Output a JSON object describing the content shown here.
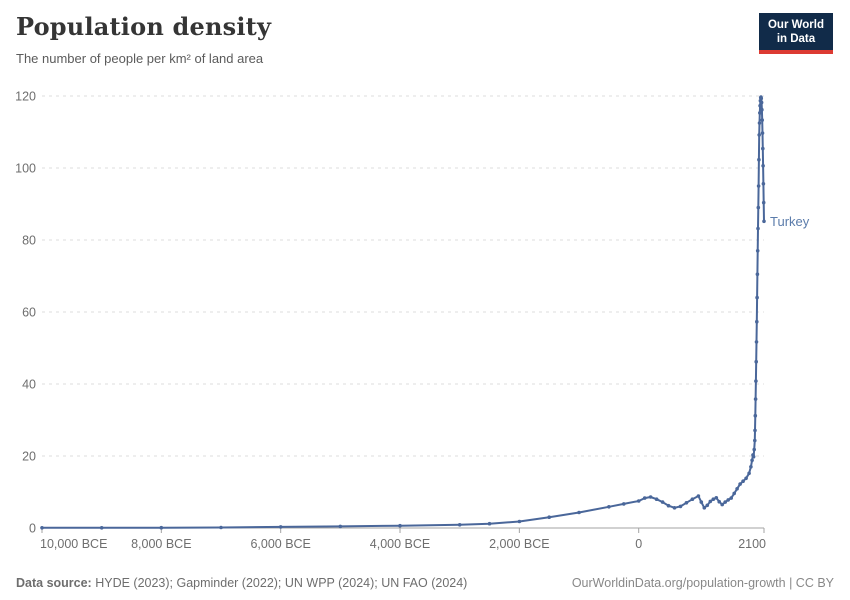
{
  "header": {
    "title": "Population density",
    "subtitle": "The number of people per km² of land area",
    "logo": {
      "line1": "Our World",
      "line2": "in Data"
    }
  },
  "footer": {
    "source_label": "Data source:",
    "source_text": " HYDE (2023); Gapminder (2022); UN WPP (2024); UN FAO (2024)",
    "credit": "OurWorldinData.org/population-growth | CC BY"
  },
  "colors": {
    "logo_background": "#112B49",
    "logo_stripe": "#DC3A32",
    "series_line": "#4a679a",
    "entity_label": "#5b7cab",
    "gridline": "#dcdcdc",
    "axis": "#a3a3a3",
    "tick_text": "#6e6e6e"
  },
  "chart_data": {
    "type": "line",
    "title": "Population density",
    "subtitle": "The number of people per km² of land area",
    "xlabel": "",
    "ylabel": "",
    "grid": "horizontal-dashed",
    "x_range": [
      -10000,
      2100
    ],
    "y_range": [
      0,
      120
    ],
    "y_ticks": [
      {
        "value": 0,
        "label": "0"
      },
      {
        "value": 20,
        "label": "20"
      },
      {
        "value": 40,
        "label": "40"
      },
      {
        "value": 60,
        "label": "60"
      },
      {
        "value": 80,
        "label": "80"
      },
      {
        "value": 100,
        "label": "100"
      },
      {
        "value": 120,
        "label": "120"
      }
    ],
    "x_ticks": [
      {
        "value": -10000,
        "label": "10,000 BCE",
        "align": "start"
      },
      {
        "value": -8000,
        "label": "8,000 BCE",
        "align": "middle"
      },
      {
        "value": -6000,
        "label": "6,000 BCE",
        "align": "middle"
      },
      {
        "value": -4000,
        "label": "4,000 BCE",
        "align": "middle"
      },
      {
        "value": -2000,
        "label": "2,000 BCE",
        "align": "middle"
      },
      {
        "value": 0,
        "label": "0",
        "align": "middle"
      },
      {
        "value": 2100,
        "label": "2100",
        "align": "end"
      }
    ],
    "series": [
      {
        "name": "Turkey",
        "color": "#4a679a",
        "label_color": "#5b7cab",
        "points": [
          [
            -10000,
            0.05
          ],
          [
            -9000,
            0.06
          ],
          [
            -8000,
            0.08
          ],
          [
            -7000,
            0.13
          ],
          [
            -6000,
            0.3
          ],
          [
            -5000,
            0.45
          ],
          [
            -4000,
            0.65
          ],
          [
            -3000,
            0.9
          ],
          [
            -2500,
            1.2
          ],
          [
            -2000,
            1.8
          ],
          [
            -1500,
            3.0
          ],
          [
            -1000,
            4.3
          ],
          [
            -500,
            5.9
          ],
          [
            -250,
            6.7
          ],
          [
            0,
            7.5
          ],
          [
            100,
            8.3
          ],
          [
            200,
            8.6
          ],
          [
            300,
            8.0
          ],
          [
            400,
            7.2
          ],
          [
            500,
            6.2
          ],
          [
            600,
            5.6
          ],
          [
            700,
            6.0
          ],
          [
            800,
            7.0
          ],
          [
            900,
            8.0
          ],
          [
            1000,
            8.9
          ],
          [
            1050,
            7.2
          ],
          [
            1100,
            5.6
          ],
          [
            1150,
            6.3
          ],
          [
            1200,
            7.4
          ],
          [
            1250,
            8.0
          ],
          [
            1300,
            8.4
          ],
          [
            1350,
            7.3
          ],
          [
            1400,
            6.5
          ],
          [
            1450,
            7.2
          ],
          [
            1500,
            7.8
          ],
          [
            1550,
            8.3
          ],
          [
            1600,
            9.6
          ],
          [
            1650,
            10.9
          ],
          [
            1700,
            12.2
          ],
          [
            1750,
            13.0
          ],
          [
            1800,
            13.8
          ],
          [
            1850,
            15.2
          ],
          [
            1880,
            17.0
          ],
          [
            1900,
            18.8
          ],
          [
            1915,
            20.3
          ],
          [
            1925,
            19.8
          ],
          [
            1935,
            21.8
          ],
          [
            1945,
            24.3
          ],
          [
            1950,
            27.1
          ],
          [
            1955,
            31.2
          ],
          [
            1960,
            35.8
          ],
          [
            1965,
            40.8
          ],
          [
            1970,
            46.2
          ],
          [
            1975,
            51.7
          ],
          [
            1980,
            57.3
          ],
          [
            1985,
            64.0
          ],
          [
            1990,
            70.5
          ],
          [
            1995,
            77.0
          ],
          [
            2000,
            83.2
          ],
          [
            2005,
            89.0
          ],
          [
            2010,
            95.0
          ],
          [
            2015,
            102.3
          ],
          [
            2020,
            109.2
          ],
          [
            2025,
            112.5
          ],
          [
            2030,
            115.3
          ],
          [
            2035,
            117.3
          ],
          [
            2040,
            118.7
          ],
          [
            2045,
            119.5
          ],
          [
            2050,
            119.7
          ],
          [
            2055,
            119.3
          ],
          [
            2060,
            118.2
          ],
          [
            2065,
            116.2
          ],
          [
            2070,
            113.3
          ],
          [
            2075,
            109.7
          ],
          [
            2080,
            105.4
          ],
          [
            2085,
            100.6
          ],
          [
            2090,
            95.6
          ],
          [
            2095,
            90.4
          ],
          [
            2100,
            85.2
          ]
        ]
      }
    ]
  }
}
